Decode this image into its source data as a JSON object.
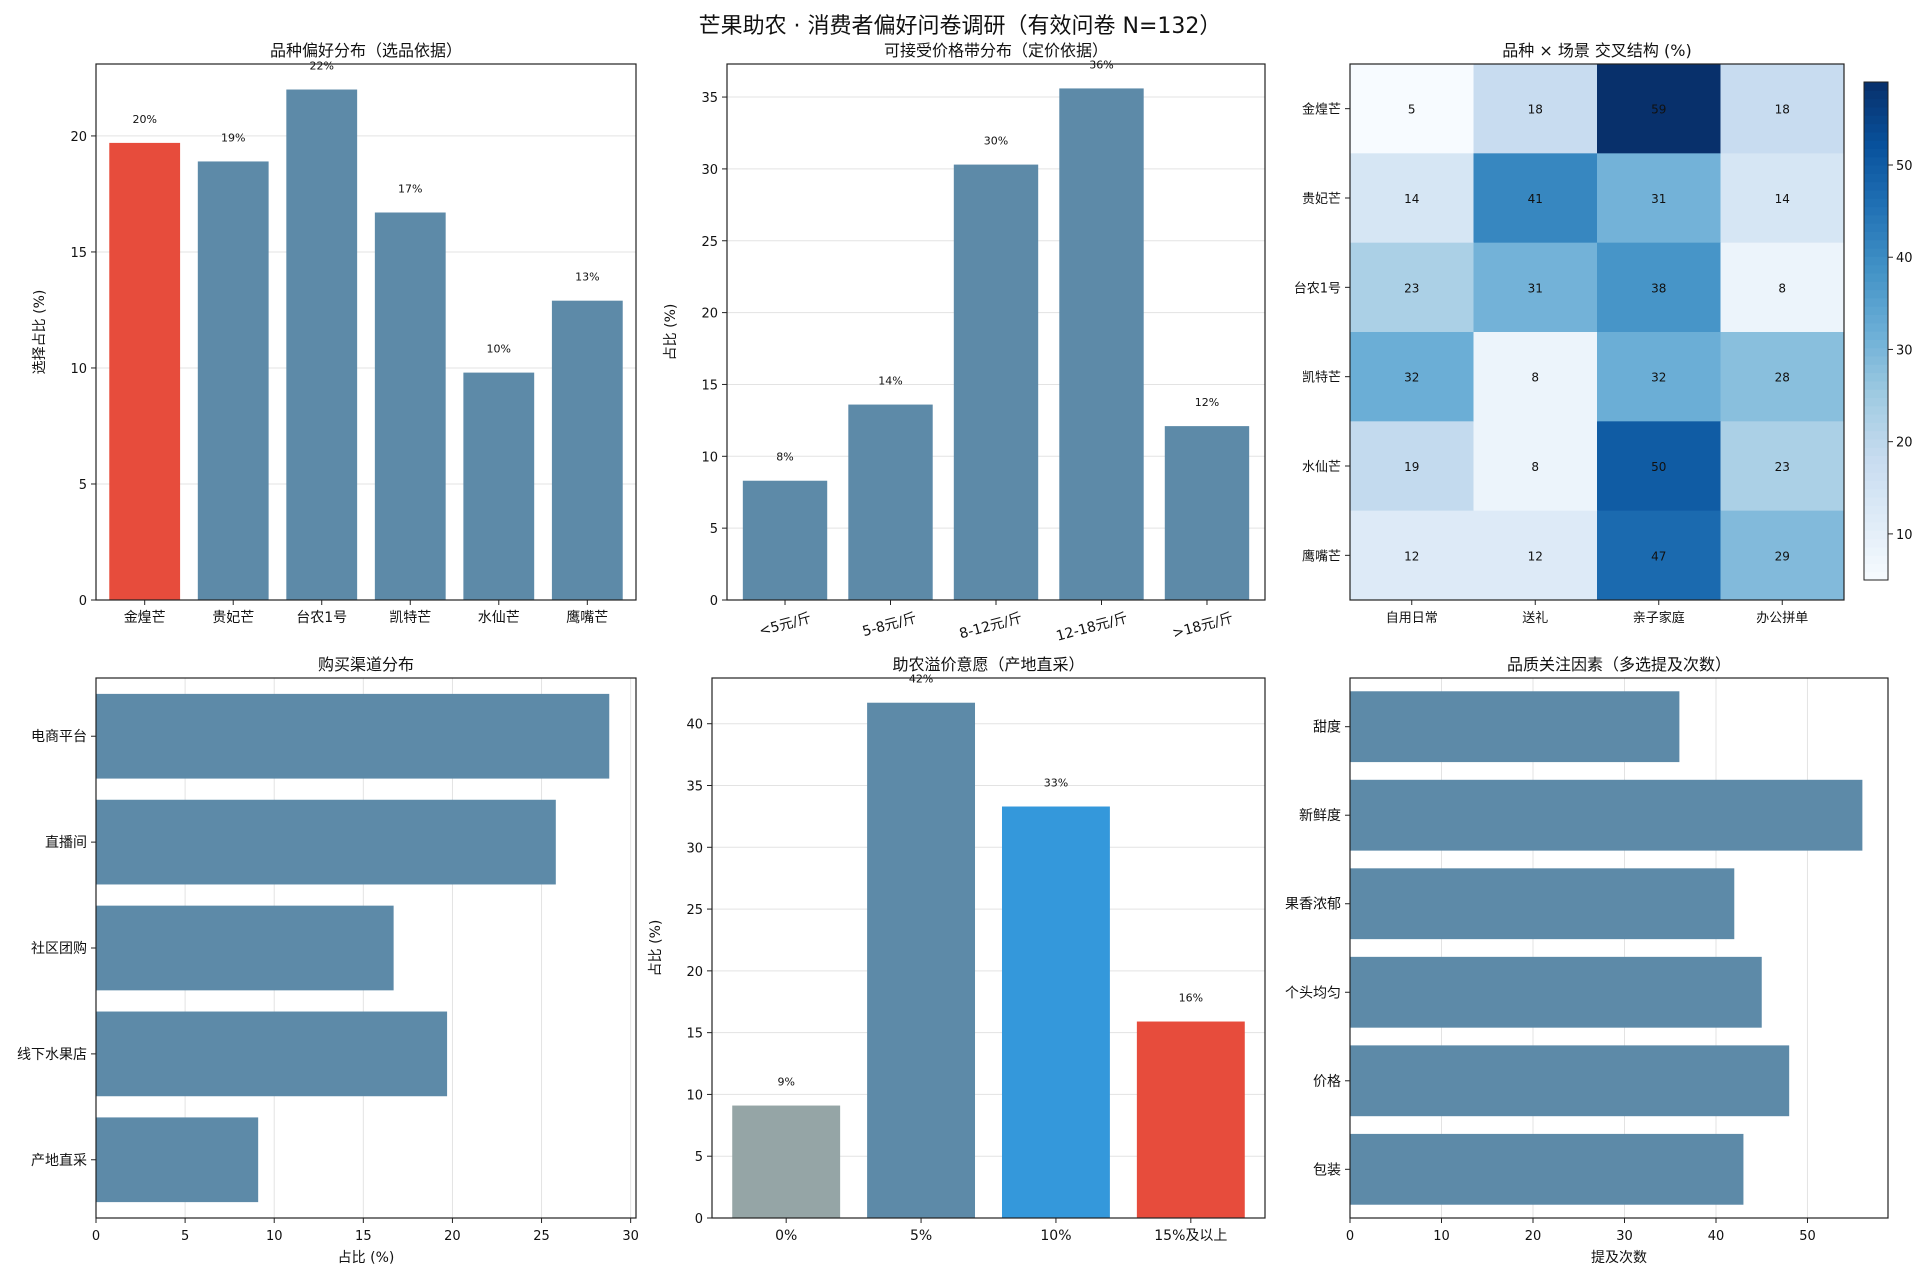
{
  "title": "芒果助农 · 消费者偏好问卷调研（有效问卷 N=132）",
  "colors": {
    "bar": "#5d8aa8",
    "highlight": "#e74c3c",
    "grey": "#95a5a6",
    "blue": "#3498db"
  },
  "chart_data": [
    {
      "type": "bar",
      "title": "品种偏好分布（选品依据）",
      "xlabel": "",
      "ylabel": "选择占比 (%)",
      "ylim": [
        0,
        23.1
      ],
      "yticks": [
        "0",
        "5",
        "10",
        "15",
        "20"
      ],
      "grid": "y",
      "categories": [
        "金煌芒",
        "贵妃芒",
        "台农1号",
        "凯特芒",
        "水仙芒",
        "鹰嘴芒"
      ],
      "values": [
        19.7,
        18.9,
        22.0,
        16.7,
        9.8,
        12.9
      ],
      "labels": [
        "20%",
        "19%",
        "22%",
        "17%",
        "10%",
        "13%"
      ],
      "colors": [
        "#e74c3c",
        "#5d8aa8",
        "#5d8aa8",
        "#5d8aa8",
        "#5d8aa8",
        "#5d8aa8"
      ]
    },
    {
      "type": "bar",
      "title": "可接受价格带分布（定价依据）",
      "xlabel": "",
      "ylabel": "占比 (%)",
      "ylim": [
        0,
        37.3
      ],
      "yticks": [
        "0",
        "5",
        "10",
        "15",
        "20",
        "25",
        "30",
        "35"
      ],
      "grid": "y",
      "categories": [
        "<5元/斤",
        "5-8元/斤",
        "8-12元/斤",
        "12-18元/斤",
        ">18元/斤"
      ],
      "values": [
        8.3,
        13.6,
        30.3,
        35.6,
        12.1
      ],
      "labels": [
        "8%",
        "14%",
        "30%",
        "36%",
        "12%"
      ],
      "colors": [
        "#5d8aa8",
        "#5d8aa8",
        "#5d8aa8",
        "#5d8aa8",
        "#5d8aa8"
      ]
    },
    {
      "type": "heatmap",
      "title": "品种 × 场景 交叉结构 (%)",
      "rows": [
        "金煌芒",
        "贵妃芒",
        "台农1号",
        "凯特芒",
        "水仙芒",
        "鹰嘴芒"
      ],
      "columns": [
        "自用日常",
        "送礼",
        "亲子家庭",
        "办公拼单"
      ],
      "values": [
        [
          5,
          18,
          59,
          18
        ],
        [
          14,
          41,
          31,
          14
        ],
        [
          23,
          31,
          38,
          8
        ],
        [
          32,
          8,
          32,
          28
        ],
        [
          19,
          8,
          50,
          23
        ],
        [
          12,
          12,
          47,
          29
        ]
      ],
      "vmin": 5,
      "vmax": 59,
      "colorbar_ticks": [
        "10",
        "20",
        "30",
        "40",
        "50"
      ]
    },
    {
      "type": "hbar",
      "title": "购买渠道分布",
      "xlabel": "占比 (%)",
      "ylabel": "",
      "xlim": [
        0,
        30.3
      ],
      "xticks": [
        "0",
        "5",
        "10",
        "15",
        "20",
        "25",
        "30"
      ],
      "grid": "x",
      "categories": [
        "电商平台",
        "直播间",
        "社区团购",
        "线下水果店",
        "产地直采"
      ],
      "values": [
        28.8,
        25.8,
        16.7,
        19.7,
        9.1
      ]
    },
    {
      "type": "bar",
      "title": "助农溢价意愿（产地直采）",
      "xlabel": "",
      "ylabel": "占比 (%)",
      "ylim": [
        0,
        43.7
      ],
      "yticks": [
        "0",
        "5",
        "10",
        "15",
        "20",
        "25",
        "30",
        "35",
        "40"
      ],
      "grid": "y",
      "categories": [
        "0%",
        "5%",
        "10%",
        "15%及以上"
      ],
      "values": [
        9.1,
        41.7,
        33.3,
        15.9
      ],
      "labels": [
        "9%",
        "42%",
        "33%",
        "16%"
      ],
      "colors": [
        "#95a5a6",
        "#5d8aa8",
        "#3498db",
        "#e74c3c"
      ]
    },
    {
      "type": "hbar",
      "title": "品质关注因素（多选提及次数）",
      "xlabel": "提及次数",
      "ylabel": "",
      "xlim": [
        0,
        58.8
      ],
      "xticks": [
        "0",
        "10",
        "20",
        "30",
        "40",
        "50"
      ],
      "grid": "x",
      "categories": [
        "甜度",
        "新鲜度",
        "果香浓郁",
        "个头均匀",
        "价格",
        "包装"
      ],
      "values": [
        36,
        56,
        42,
        45,
        48,
        43
      ]
    }
  ]
}
